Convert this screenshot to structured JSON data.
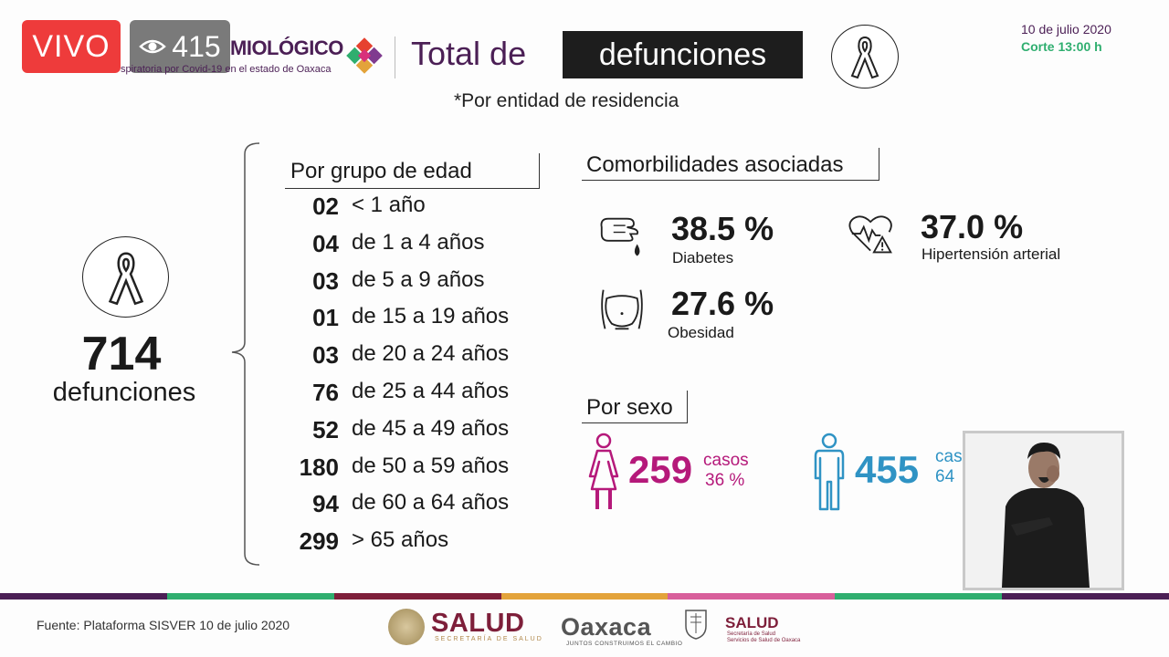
{
  "live": {
    "label": "VIVO",
    "viewers": "415"
  },
  "header": {
    "brand": "MIOLÓGICO",
    "brand_sub": "spiratoria por Covid-19 en el estado de Oaxaca",
    "title_prefix": "Total de",
    "title_highlight": "defunciones",
    "date": "10 de julio 2020",
    "cutoff": "Corte 13:00 h",
    "subtitle": "*Por entidad de residencia"
  },
  "total": {
    "value": "714",
    "label": "defunciones"
  },
  "age_groups": {
    "header": "Por grupo de edad",
    "rows": [
      {
        "count": "02",
        "range": "< 1 año"
      },
      {
        "count": "04",
        "range": "de 1 a 4 años"
      },
      {
        "count": "03",
        "range": "de 5 a 9 años"
      },
      {
        "count": "01",
        "range": "de 15 a 19 años"
      },
      {
        "count": "03",
        "range": "de 20 a 24 años"
      },
      {
        "count": "76",
        "range": "de 25 a 44 años"
      },
      {
        "count": "52",
        "range": "de 45 a 49 años"
      },
      {
        "count": "180",
        "range": "de 50 a 59 años"
      },
      {
        "count": "94",
        "range": "de 60 a 64 años"
      },
      {
        "count": "299",
        "range": "> 65 años"
      }
    ]
  },
  "comorbidities": {
    "header": "Comorbilidades asociadas",
    "items": [
      {
        "pct": "38.5 %",
        "label": "Diabetes",
        "icon": "diabetes-icon"
      },
      {
        "pct": "37.0 %",
        "label": "Hipertensión arterial",
        "icon": "heart-alert-icon"
      },
      {
        "pct": "27.6 %",
        "label": "Obesidad",
        "icon": "obesity-icon"
      }
    ]
  },
  "sex": {
    "header": "Por sexo",
    "female": {
      "count": "259",
      "cases_label": "casos",
      "pct": "36 %",
      "color": "#b5197a"
    },
    "male": {
      "count": "455",
      "cases_label": "cas",
      "pct": "64",
      "color": "#2f93c4"
    }
  },
  "footer": {
    "source": "Fuente: Plataforma SISVER 10 de julio 2020",
    "salud": "SALUD",
    "salud_sub": "SECRETARÍA DE SALUD",
    "oaxaca": "Oaxaca",
    "oaxaca_sub": "JUNTOS CONSTRUIMOS EL CAMBIO",
    "salud_state": "SALUD",
    "salud_state_sub1": "Secretaría de Salud",
    "salud_state_sub2": "Servicios de Salud de Oaxaca"
  },
  "colors": {
    "purple": "#4b1f55",
    "green": "#2fae6f",
    "female": "#b5197a",
    "male": "#2f93c4",
    "stripe": [
      "#4b1f55",
      "#2fae6f",
      "#7e1f3a",
      "#e3a33a",
      "#d85f9b",
      "#2fae6f",
      "#4b1f55"
    ]
  }
}
